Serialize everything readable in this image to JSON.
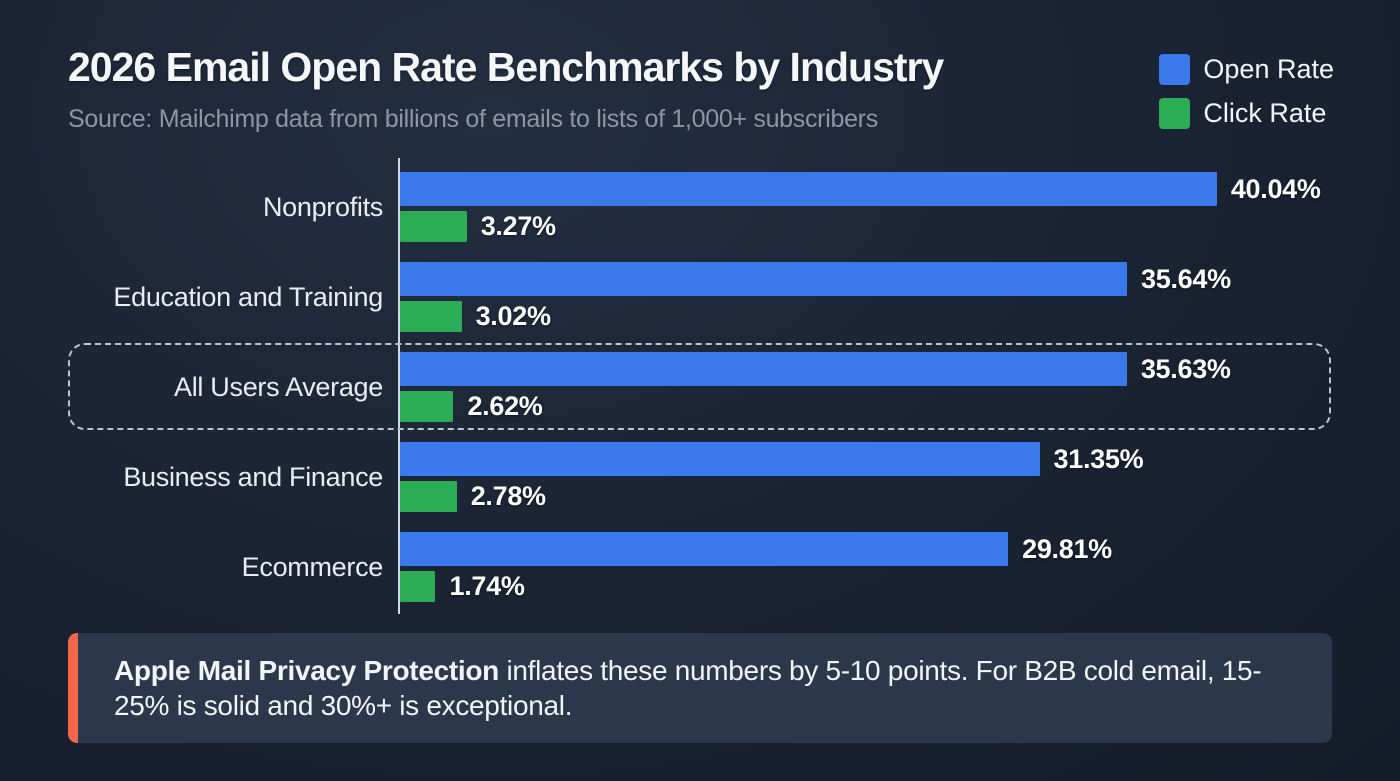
{
  "header": {
    "title": "2026 Email Open Rate Benchmarks by Industry",
    "subtitle": "Source: Mailchimp data from billions of emails to lists of 1,000+ subscribers"
  },
  "legend": {
    "items": [
      {
        "label": "Open Rate",
        "color": "#3b78ec"
      },
      {
        "label": "Click Rate",
        "color": "#2bad55"
      }
    ],
    "position": "top-right"
  },
  "chart_data": {
    "type": "bar",
    "orientation": "horizontal",
    "title": "2026 Email Open Rate Benchmarks by Industry",
    "categories": [
      "Nonprofits",
      "Education and Training",
      "All Users Average",
      "Business and Finance",
      "Ecommerce"
    ],
    "series": [
      {
        "name": "Open Rate",
        "color": "#3b78ec",
        "values": [
          40.04,
          35.64,
          35.63,
          31.35,
          29.81
        ],
        "labels": [
          "40.04%",
          "35.64%",
          "35.63%",
          "31.35%",
          "29.81%"
        ]
      },
      {
        "name": "Click Rate",
        "color": "#2bad55",
        "values": [
          3.27,
          3.02,
          2.62,
          2.78,
          1.74
        ],
        "labels": [
          "3.27%",
          "3.02%",
          "2.62%",
          "2.78%",
          "1.74%"
        ]
      }
    ],
    "highlighted_category": "All Users Average",
    "xlim": [
      0,
      45
    ],
    "grid": false,
    "legend_position": "top-right",
    "axis_color": "#dde2e9",
    "background_color": "#1b2434"
  },
  "callout": {
    "bold_text": "Apple Mail Privacy Protection",
    "text": " inflates these numbers by 5-10 points. For B2B cold email, 15-25% is solid and 30%+ is exceptional.",
    "accent_color": "#f4674d",
    "background_color": "#2b374a"
  }
}
